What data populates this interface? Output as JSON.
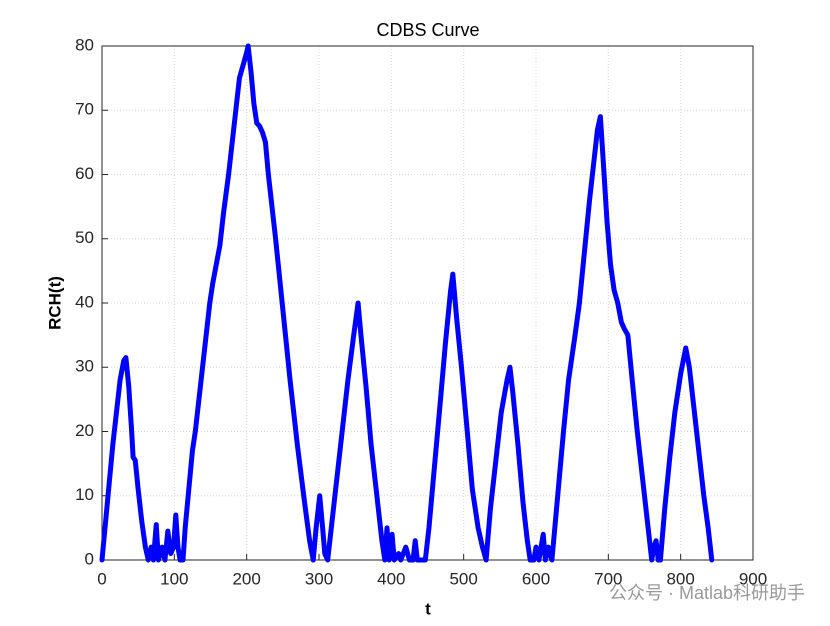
{
  "chart_data": {
    "type": "line",
    "title": "CDBS Curve",
    "xlabel": "t",
    "ylabel": "RCH(t)",
    "annotation": "公众号 · Matlab科研助手",
    "color": "#0000ff",
    "grid": true,
    "xlim": [
      0,
      900
    ],
    "xticks": [
      0,
      100,
      200,
      300,
      400,
      500,
      600,
      700,
      800,
      900
    ],
    "ylim": [
      0,
      80
    ],
    "yticks": [
      0,
      10,
      20,
      30,
      40,
      50,
      60,
      70,
      80
    ],
    "x": [
      0,
      5,
      10,
      15,
      20,
      25,
      30,
      33,
      37,
      41,
      43,
      46,
      50,
      55,
      60,
      64,
      68,
      71,
      75,
      78,
      83,
      87,
      91,
      95,
      99,
      102,
      105,
      108,
      112,
      115,
      120,
      125,
      129,
      135,
      140,
      145,
      149,
      153,
      158,
      163,
      168,
      175,
      180,
      185,
      190,
      195,
      200,
      202,
      206,
      210,
      214,
      218,
      222,
      226,
      230,
      240,
      250,
      260,
      270,
      280,
      287,
      292,
      296,
      301,
      305,
      308,
      312,
      318,
      325,
      332,
      340,
      348,
      354,
      358,
      365,
      372,
      380,
      387,
      391,
      394,
      397,
      401,
      404,
      410,
      413,
      420,
      425,
      430,
      433,
      436,
      447,
      452,
      460,
      468,
      475,
      482,
      485,
      490,
      497,
      505,
      512,
      520,
      526,
      531,
      537,
      545,
      552,
      560,
      564,
      568,
      575,
      582,
      588,
      592,
      597,
      600,
      604,
      607,
      610,
      613,
      617,
      622,
      630,
      638,
      645,
      654,
      660,
      667,
      674,
      680,
      685,
      689,
      693,
      698,
      703,
      708,
      713,
      718,
      722,
      727,
      733,
      740,
      747,
      754,
      760,
      763,
      766,
      769,
      772,
      778,
      785,
      792,
      800,
      807,
      812,
      818,
      825,
      832,
      838,
      843
    ],
    "values": [
      0,
      6,
      12,
      18,
      23,
      28,
      31,
      31.5,
      27,
      20,
      16,
      15.5,
      11,
      6,
      2,
      0,
      2,
      0,
      5.5,
      0,
      2,
      0,
      4.5,
      1,
      2,
      7,
      2,
      0,
      0,
      5,
      11,
      17,
      20,
      26,
      31,
      36,
      40,
      43,
      46,
      49,
      54,
      60,
      65,
      70,
      75,
      77,
      79,
      80,
      76,
      71,
      68,
      67.5,
      66.5,
      65,
      60,
      50,
      39,
      28,
      18,
      9,
      3,
      0,
      5,
      10,
      5,
      1,
      0,
      6,
      13,
      20,
      28,
      35,
      40,
      35,
      27,
      18,
      10,
      3,
      0,
      5,
      0,
      4,
      0,
      1,
      0,
      2,
      0,
      0,
      3,
      0,
      0,
      5,
      15,
      25,
      34,
      42,
      44.5,
      38,
      30,
      20,
      11,
      5,
      2,
      0,
      8,
      16,
      23,
      28,
      30,
      26,
      18,
      9,
      3,
      0,
      0,
      2,
      0,
      2,
      4,
      0,
      2,
      0,
      10,
      20,
      28,
      35,
      40,
      48,
      56,
      62,
      67,
      69,
      62,
      53,
      46,
      42,
      40,
      37,
      36,
      35,
      28,
      20,
      13,
      6,
      0,
      2,
      3,
      0,
      0,
      8,
      16,
      23,
      29,
      33,
      30,
      24,
      17,
      10,
      5,
      0
    ]
  }
}
